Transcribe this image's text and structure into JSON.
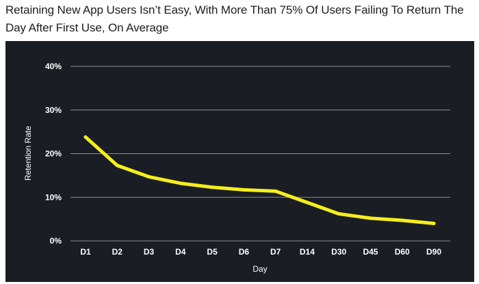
{
  "headline": "Retaining New App Users Isn’t Easy, With More Than 75% Of Users Failing To Return The Day After First Use, On Average",
  "colors": {
    "panel_background": "#1b1d24",
    "line": "#f4ef1b",
    "gridline": "#8a8c92",
    "text": "#ffffff"
  },
  "chart_data": {
    "type": "line",
    "title": "",
    "xlabel": "Day",
    "ylabel": "Retention Rate",
    "categories": [
      "D1",
      "D2",
      "D3",
      "D4",
      "D5",
      "D6",
      "D7",
      "D14",
      "D30",
      "D45",
      "D60",
      "D90"
    ],
    "ylim": [
      0,
      40
    ],
    "yticks": [
      0,
      10,
      20,
      30,
      40
    ],
    "ytick_labels": [
      "0%",
      "10%",
      "20%",
      "30%",
      "40%"
    ],
    "grid": "horizontal",
    "series": [
      {
        "values": [
          23.8,
          17.3,
          14.7,
          13.2,
          12.3,
          11.7,
          11.4,
          8.8,
          6.2,
          5.2,
          4.7,
          4.0
        ]
      }
    ]
  }
}
